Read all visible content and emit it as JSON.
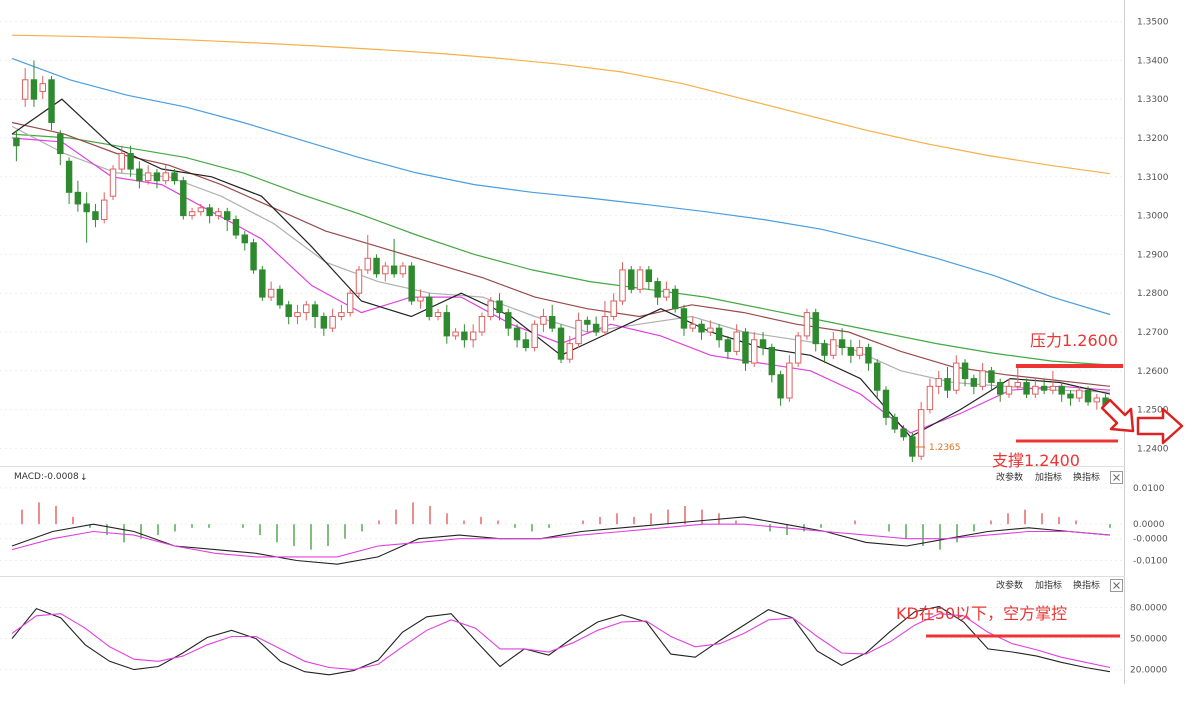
{
  "chart_data": {
    "type": "candlestick",
    "price_panel": {
      "ylim": [
        1.2365,
        1.3535
      ],
      "y_ticks": [
        "1.3500",
        "1.3400",
        "1.3300",
        "1.3200",
        "1.3100",
        "1.3000",
        "1.2900",
        "1.2800",
        "1.2700",
        "1.2600",
        "1.2500",
        "1.2400"
      ],
      "low_marker": "1.2365",
      "candles": [
        [
          1.32,
          1.318,
          1.322,
          1.314
        ],
        [
          1.33,
          1.335,
          1.338,
          1.328
        ],
        [
          1.335,
          1.33,
          1.34,
          1.328
        ],
        [
          1.332,
          1.334,
          1.336,
          1.33
        ],
        [
          1.335,
          1.324,
          1.336,
          1.322
        ],
        [
          1.321,
          1.316,
          1.322,
          1.313
        ],
        [
          1.314,
          1.306,
          1.315,
          1.303
        ],
        [
          1.306,
          1.303,
          1.309,
          1.301
        ],
        [
          1.303,
          1.301,
          1.306,
          1.293
        ],
        [
          1.301,
          1.299,
          1.303,
          1.297
        ],
        [
          1.299,
          1.304,
          1.306,
          1.298
        ],
        [
          1.305,
          1.312,
          1.313,
          1.304
        ],
        [
          1.312,
          1.316,
          1.318,
          1.311
        ],
        [
          1.316,
          1.312,
          1.318,
          1.31
        ],
        [
          1.312,
          1.309,
          1.314,
          1.307
        ],
        [
          1.309,
          1.311,
          1.313,
          1.308
        ],
        [
          1.311,
          1.309,
          1.312,
          1.307
        ],
        [
          1.309,
          1.311,
          1.313,
          1.308
        ],
        [
          1.311,
          1.309,
          1.312,
          1.308
        ],
        [
          1.309,
          1.3,
          1.31,
          1.299
        ],
        [
          1.3,
          1.301,
          1.302,
          1.299
        ],
        [
          1.301,
          1.302,
          1.303,
          1.3
        ],
        [
          1.302,
          1.3,
          1.303,
          1.298
        ],
        [
          1.3,
          1.301,
          1.302,
          1.299
        ],
        [
          1.301,
          1.299,
          1.302,
          1.296
        ],
        [
          1.299,
          1.295,
          1.3,
          1.294
        ],
        [
          1.295,
          1.293,
          1.296,
          1.291
        ],
        [
          1.293,
          1.286,
          1.294,
          1.285
        ],
        [
          1.286,
          1.279,
          1.287,
          1.278
        ],
        [
          1.279,
          1.281,
          1.283,
          1.278
        ],
        [
          1.281,
          1.277,
          1.282,
          1.276
        ],
        [
          1.277,
          1.274,
          1.278,
          1.272
        ],
        [
          1.274,
          1.275,
          1.277,
          1.272
        ],
        [
          1.275,
          1.277,
          1.278,
          1.273
        ],
        [
          1.277,
          1.274,
          1.278,
          1.271
        ],
        [
          1.274,
          1.271,
          1.275,
          1.269
        ],
        [
          1.271,
          1.274,
          1.276,
          1.27
        ],
        [
          1.274,
          1.275,
          1.277,
          1.273
        ],
        [
          1.275,
          1.28,
          1.281,
          1.274
        ],
        [
          1.28,
          1.286,
          1.287,
          1.279
        ],
        [
          1.286,
          1.289,
          1.295,
          1.285
        ],
        [
          1.289,
          1.285,
          1.29,
          1.284
        ],
        [
          1.285,
          1.287,
          1.288,
          1.283
        ],
        [
          1.287,
          1.285,
          1.294,
          1.284
        ],
        [
          1.285,
          1.287,
          1.288,
          1.284
        ],
        [
          1.287,
          1.278,
          1.288,
          1.277
        ],
        [
          1.278,
          1.279,
          1.281,
          1.276
        ],
        [
          1.279,
          1.274,
          1.28,
          1.273
        ],
        [
          1.274,
          1.275,
          1.276,
          1.273
        ],
        [
          1.275,
          1.269,
          1.277,
          1.267
        ],
        [
          1.269,
          1.27,
          1.271,
          1.268
        ],
        [
          1.27,
          1.268,
          1.272,
          1.266
        ],
        [
          1.268,
          1.27,
          1.272,
          1.266
        ],
        [
          1.27,
          1.274,
          1.275,
          1.269
        ],
        [
          1.274,
          1.278,
          1.279,
          1.273
        ],
        [
          1.278,
          1.275,
          1.28,
          1.273
        ],
        [
          1.275,
          1.271,
          1.276,
          1.269
        ],
        [
          1.271,
          1.268,
          1.272,
          1.266
        ],
        [
          1.268,
          1.266,
          1.27,
          1.265
        ],
        [
          1.266,
          1.272,
          1.273,
          1.265
        ],
        [
          1.272,
          1.274,
          1.276,
          1.27
        ],
        [
          1.274,
          1.271,
          1.277,
          1.27
        ],
        [
          1.271,
          1.263,
          1.272,
          1.262
        ],
        [
          1.263,
          1.267,
          1.269,
          1.262
        ],
        [
          1.267,
          1.273,
          1.275,
          1.266
        ],
        [
          1.273,
          1.272,
          1.274,
          1.27
        ],
        [
          1.272,
          1.27,
          1.274,
          1.269
        ],
        [
          1.27,
          1.274,
          1.278,
          1.269
        ],
        [
          1.274,
          1.278,
          1.28,
          1.273
        ],
        [
          1.278,
          1.286,
          1.288,
          1.277
        ],
        [
          1.286,
          1.281,
          1.287,
          1.28
        ],
        [
          1.281,
          1.286,
          1.287,
          1.28
        ],
        [
          1.286,
          1.283,
          1.287,
          1.281
        ],
        [
          1.283,
          1.279,
          1.284,
          1.277
        ],
        [
          1.279,
          1.281,
          1.283,
          1.278
        ],
        [
          1.281,
          1.276,
          1.282,
          1.275
        ],
        [
          1.276,
          1.271,
          1.277,
          1.269
        ],
        [
          1.271,
          1.272,
          1.274,
          1.27
        ],
        [
          1.272,
          1.27,
          1.273,
          1.268
        ],
        [
          1.27,
          1.271,
          1.273,
          1.269
        ],
        [
          1.271,
          1.268,
          1.272,
          1.266
        ],
        [
          1.268,
          1.265,
          1.269,
          1.263
        ],
        [
          1.265,
          1.27,
          1.272,
          1.264
        ],
        [
          1.27,
          1.262,
          1.271,
          1.26
        ],
        [
          1.262,
          1.268,
          1.27,
          1.261
        ],
        [
          1.268,
          1.266,
          1.27,
          1.264
        ],
        [
          1.266,
          1.259,
          1.267,
          1.257
        ],
        [
          1.259,
          1.253,
          1.26,
          1.251
        ],
        [
          1.253,
          1.262,
          1.264,
          1.252
        ],
        [
          1.262,
          1.269,
          1.27,
          1.261
        ],
        [
          1.269,
          1.275,
          1.276,
          1.268
        ],
        [
          1.275,
          1.267,
          1.276,
          1.265
        ],
        [
          1.267,
          1.264,
          1.268,
          1.262
        ],
        [
          1.264,
          1.268,
          1.27,
          1.263
        ],
        [
          1.268,
          1.266,
          1.271,
          1.264
        ],
        [
          1.266,
          1.264,
          1.268,
          1.262
        ],
        [
          1.264,
          1.266,
          1.268,
          1.263
        ],
        [
          1.266,
          1.262,
          1.267,
          1.26
        ],
        [
          1.262,
          1.255,
          1.263,
          1.253
        ],
        [
          1.255,
          1.248,
          1.256,
          1.246
        ],
        [
          1.248,
          1.245,
          1.249,
          1.244
        ],
        [
          1.245,
          1.243,
          1.246,
          1.242
        ],
        [
          1.243,
          1.238,
          1.244,
          1.2365
        ],
        [
          1.238,
          1.25,
          1.252,
          1.237
        ],
        [
          1.25,
          1.256,
          1.258,
          1.249
        ],
        [
          1.256,
          1.258,
          1.26,
          1.254
        ],
        [
          1.258,
          1.255,
          1.261,
          1.253
        ],
        [
          1.255,
          1.262,
          1.264,
          1.254
        ],
        [
          1.262,
          1.258,
          1.263,
          1.256
        ],
        [
          1.258,
          1.256,
          1.259,
          1.254
        ],
        [
          1.256,
          1.26,
          1.262,
          1.255
        ],
        [
          1.26,
          1.257,
          1.261,
          1.255
        ],
        [
          1.257,
          1.254,
          1.258,
          1.252
        ],
        [
          1.254,
          1.256,
          1.258,
          1.253
        ],
        [
          1.256,
          1.257,
          1.261,
          1.255
        ],
        [
          1.257,
          1.254,
          1.258,
          1.253
        ],
        [
          1.254,
          1.256,
          1.258,
          1.253
        ],
        [
          1.256,
          1.255,
          1.258,
          1.254
        ],
        [
          1.255,
          1.256,
          1.26,
          1.254
        ],
        [
          1.256,
          1.254,
          1.257,
          1.252
        ],
        [
          1.254,
          1.253,
          1.255,
          1.251
        ],
        [
          1.253,
          1.255,
          1.256,
          1.252
        ],
        [
          1.255,
          1.252,
          1.256,
          1.251
        ],
        [
          1.252,
          1.253,
          1.254,
          1.25
        ],
        [
          1.253,
          1.25,
          1.254,
          1.249
        ]
      ],
      "moving_averages": [
        {
          "color": "#f5b04a",
          "points": [
            1.3465,
            1.3462,
            1.3458,
            1.3452,
            1.3445,
            1.3437,
            1.3428,
            1.3418,
            1.3405,
            1.339,
            1.337,
            1.334,
            1.33,
            1.326,
            1.322,
            1.3185,
            1.3155,
            1.313,
            1.3108
          ]
        },
        {
          "color": "#4a9ee0",
          "points": [
            1.3405,
            1.335,
            1.331,
            1.328,
            1.324,
            1.3195,
            1.315,
            1.311,
            1.308,
            1.306,
            1.3045,
            1.3028,
            1.301,
            1.299,
            1.2965,
            1.293,
            1.289,
            1.2845,
            1.279,
            1.2745
          ]
        },
        {
          "color": "#44a844",
          "points": [
            1.321,
            1.32,
            1.3175,
            1.315,
            1.311,
            1.3055,
            1.3005,
            1.295,
            1.29,
            1.286,
            1.283,
            1.281,
            1.279,
            1.276,
            1.273,
            1.27,
            1.267,
            1.2645,
            1.2625,
            1.2615
          ]
        },
        {
          "color": "#9a4a4a",
          "points": [
            1.324,
            1.321,
            1.316,
            1.313,
            1.308,
            1.302,
            1.296,
            1.292,
            1.288,
            1.284,
            1.279,
            1.276,
            1.274,
            1.277,
            1.275,
            1.272,
            1.27,
            1.265,
            1.261,
            1.259,
            1.2575,
            1.256
          ]
        },
        {
          "color": "#b0b0b0",
          "points": [
            1.323,
            1.316,
            1.311,
            1.31,
            1.305,
            1.298,
            1.288,
            1.283,
            1.28,
            1.279,
            1.274,
            1.27,
            1.272,
            1.274,
            1.27,
            1.268,
            1.266,
            1.26,
            1.257,
            1.256,
            1.255,
            1.2545
          ]
        },
        {
          "color": "#e040e0",
          "points": [
            1.32,
            1.319,
            1.31,
            1.308,
            1.301,
            1.294,
            1.282,
            1.275,
            1.279,
            1.279,
            1.272,
            1.267,
            1.272,
            1.269,
            1.264,
            1.262,
            1.26,
            1.254,
            1.244,
            1.249,
            1.255,
            1.256,
            1.255
          ]
        },
        {
          "color": "#222222",
          "points": [
            1.321,
            1.33,
            1.318,
            1.312,
            1.31,
            1.305,
            1.292,
            1.278,
            1.274,
            1.28,
            1.274,
            1.264,
            1.27,
            1.276,
            1.27,
            1.266,
            1.264,
            1.258,
            1.243,
            1.25,
            1.258,
            1.257,
            1.254
          ]
        }
      ],
      "annotations": [
        {
          "text": "压力1.2600",
          "value": 1.26,
          "color": "#ee3333"
        },
        {
          "text": "支撑1.2400",
          "value": 1.24,
          "color": "#ee3333"
        }
      ]
    },
    "macd_panel": {
      "label": "MACD:-0.0008",
      "arrow": "↓",
      "buttons": [
        "改参数",
        "加指标",
        "换指标"
      ],
      "y_ticks": [
        "0.0100",
        "0.0000",
        "-0.0000",
        "-0.0100"
      ],
      "ylim": [
        -0.0115,
        0.0105
      ],
      "histogram": [
        0.004,
        0.006,
        0.005,
        0.002,
        -0.001,
        -0.003,
        -0.005,
        -0.004,
        -0.003,
        -0.002,
        -0.001,
        -0.001,
        0.0,
        -0.001,
        -0.003,
        -0.005,
        -0.006,
        -0.007,
        -0.006,
        -0.004,
        -0.002,
        0.001,
        0.004,
        0.006,
        0.005,
        0.003,
        0.001,
        0.002,
        0.001,
        -0.001,
        -0.002,
        -0.001,
        0.0,
        0.001,
        0.002,
        0.003,
        0.002,
        0.003,
        0.004,
        0.005,
        0.004,
        0.003,
        0.001,
        0.0,
        -0.002,
        -0.003,
        -0.002,
        -0.001,
        0.0,
        0.001,
        0.0,
        -0.002,
        -0.004,
        -0.006,
        -0.007,
        -0.005,
        -0.002,
        0.001,
        0.003,
        0.004,
        0.003,
        0.002,
        0.001,
        0.0,
        -0.001
      ],
      "dif": [
        -0.006,
        -0.002,
        0.0,
        -0.002,
        -0.006,
        -0.007,
        -0.008,
        -0.01,
        -0.011,
        -0.009,
        -0.004,
        -0.003,
        -0.004,
        -0.004,
        -0.002,
        -0.001,
        0.0,
        0.001,
        0.002,
        0.0,
        -0.002,
        -0.005,
        -0.006,
        -0.004,
        -0.002,
        -0.001,
        -0.002,
        -0.003
      ],
      "dea": [
        -0.007,
        -0.004,
        -0.002,
        -0.003,
        -0.006,
        -0.008,
        -0.009,
        -0.009,
        -0.009,
        -0.006,
        -0.005,
        -0.004,
        -0.004,
        -0.004,
        -0.003,
        -0.002,
        -0.001,
        0.0,
        0.0,
        -0.001,
        -0.002,
        -0.003,
        -0.004,
        -0.004,
        -0.003,
        -0.002,
        -0.002,
        -0.003
      ]
    },
    "kd_panel": {
      "buttons": [
        "改参数",
        "加指标",
        "换指标"
      ],
      "y_ticks": [
        "80.0000",
        "50.0000",
        "20.0000"
      ],
      "ylim": [
        8,
        95
      ],
      "k": [
        50,
        79,
        70,
        44,
        28,
        20,
        23,
        36,
        51,
        58,
        50,
        28,
        18,
        15,
        19,
        29,
        56,
        71,
        74,
        48,
        23,
        40,
        34,
        51,
        66,
        73,
        66,
        35,
        32,
        48,
        63,
        78,
        70,
        38,
        24,
        36,
        57,
        76,
        81,
        66,
        40,
        37,
        33,
        27,
        22,
        18
      ],
      "d": [
        55,
        72,
        74,
        60,
        42,
        30,
        28,
        33,
        44,
        52,
        52,
        40,
        28,
        22,
        20,
        25,
        42,
        58,
        68,
        60,
        40,
        40,
        37,
        46,
        58,
        66,
        67,
        52,
        42,
        45,
        55,
        68,
        70,
        52,
        36,
        35,
        47,
        63,
        74,
        72,
        56,
        45,
        39,
        32,
        27,
        22
      ],
      "annotation": {
        "text": "KD在50以下，空方掌控",
        "value": 50,
        "color": "#ee3333"
      }
    }
  },
  "buttons": {
    "close_icon": "close-icon"
  }
}
